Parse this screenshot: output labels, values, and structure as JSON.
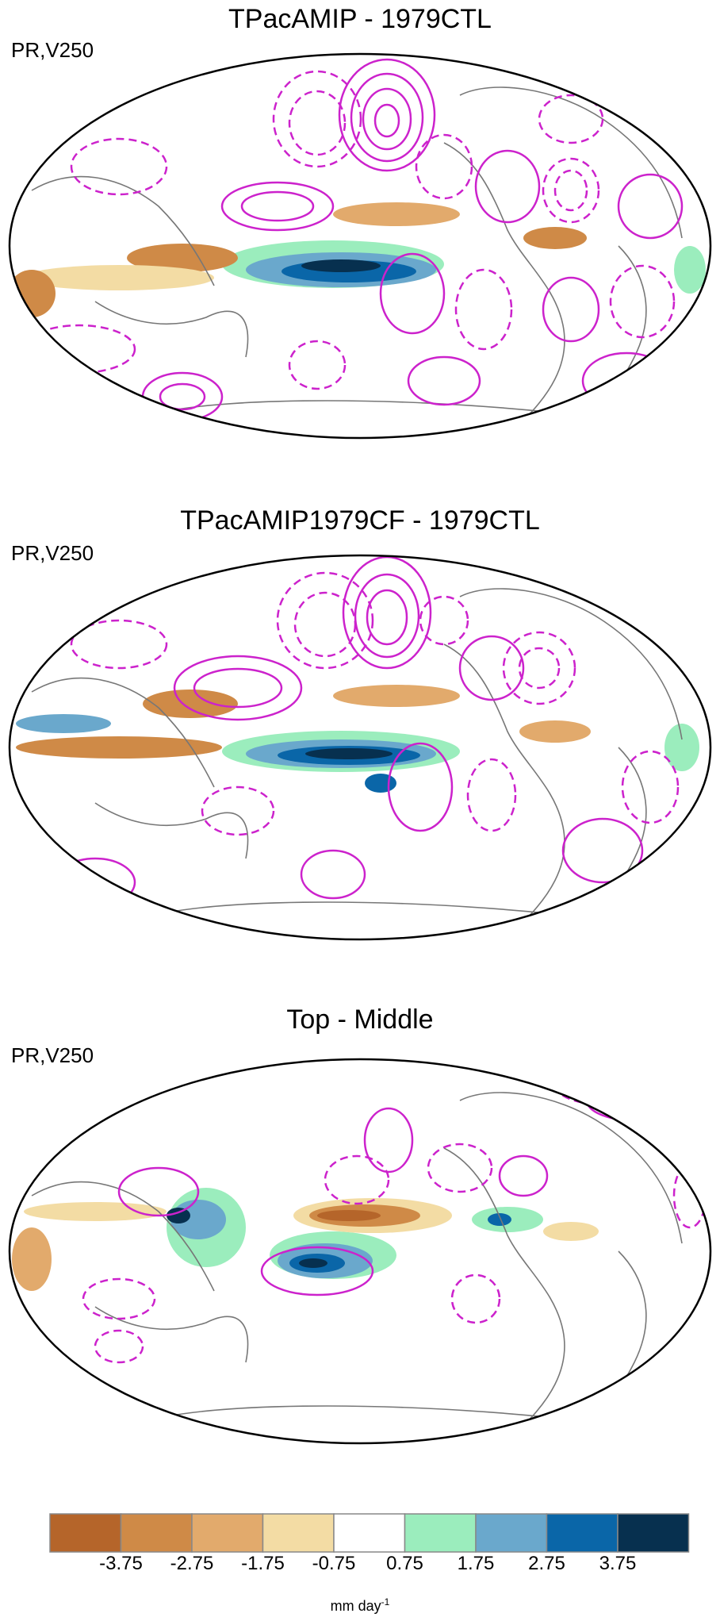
{
  "panels": [
    {
      "title": "TPacAMIP - 1979CTL",
      "label": "PR,V250"
    },
    {
      "title": "TPacAMIP1979CF - 1979CTL",
      "label": "PR,V250"
    },
    {
      "title": "Top - Middle",
      "label": "PR,V250"
    }
  ],
  "colorbar": {
    "ticks": [
      "-3.75",
      "-2.75",
      "-1.75",
      "-0.75",
      "0.75",
      "1.75",
      "2.75",
      "3.75"
    ],
    "colors": [
      "#b5652a",
      "#cf8a47",
      "#e2aa6c",
      "#f3dca4",
      "#ffffff",
      "#9bedbd",
      "#6aa8cc",
      "#0a66a8",
      "#07304f"
    ],
    "unit_base": "mm day",
    "unit_sup": "-1"
  },
  "colors": {
    "contour": "#cc22cc",
    "coast": "#777777",
    "frame": "#000000"
  }
}
